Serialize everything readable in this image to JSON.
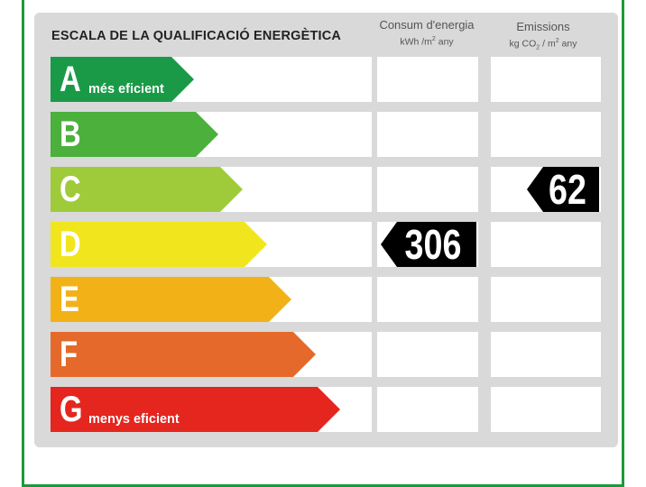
{
  "chart_data": {
    "type": "table",
    "title": "ESCALA DE LA QUALIFICACIÓ ENERGÈTICA",
    "columns": [
      {
        "name": "Consum d'energia",
        "unit_prefix": "kWh /m",
        "unit_sup": "2",
        "unit_suffix": " any"
      },
      {
        "name": "Emissions",
        "unit_prefix": "kg CO",
        "unit_sub": "2",
        "unit_mid": " / m",
        "unit_sup": "2",
        "unit_suffix": " any"
      }
    ],
    "classes": [
      {
        "letter": "A",
        "caption": "més eficient",
        "color": "#1a9a47"
      },
      {
        "letter": "B",
        "caption": "",
        "color": "#4bb03c"
      },
      {
        "letter": "C",
        "caption": "",
        "color": "#9fcb3b"
      },
      {
        "letter": "D",
        "caption": "",
        "color": "#f1e61d"
      },
      {
        "letter": "E",
        "caption": "",
        "color": "#f2b217"
      },
      {
        "letter": "F",
        "caption": "",
        "color": "#e5692a"
      },
      {
        "letter": "G",
        "caption": "menys eficient",
        "color": "#e4261f"
      }
    ],
    "ratings": [
      {
        "column": "Consum d'energia",
        "class": "D",
        "value": "306"
      },
      {
        "column": "Emissions",
        "class": "C",
        "value": "62"
      }
    ]
  }
}
